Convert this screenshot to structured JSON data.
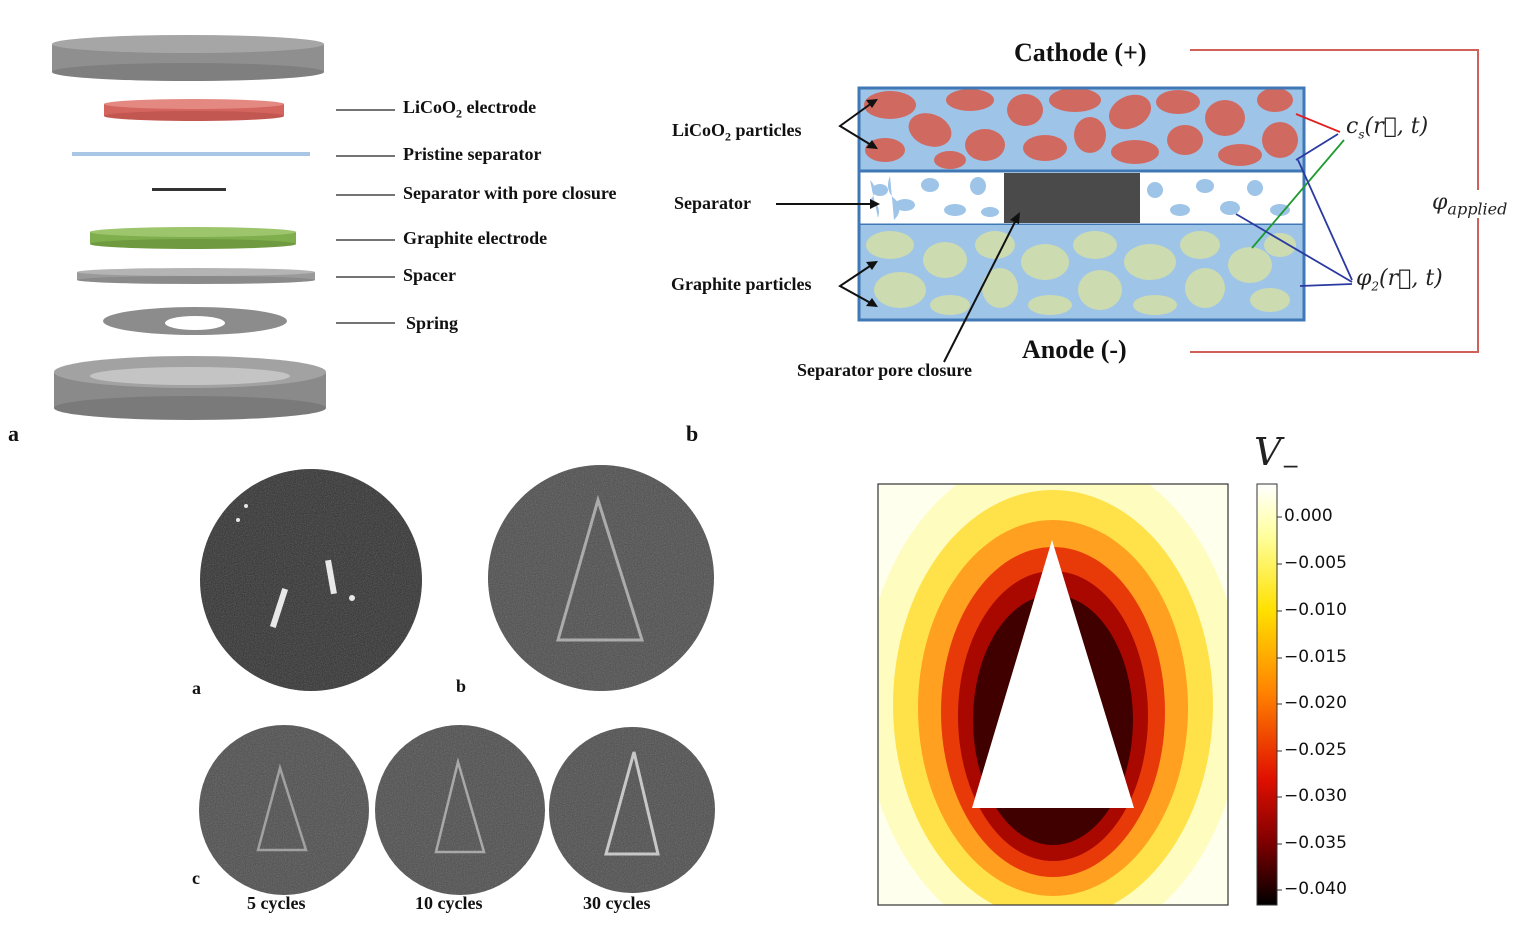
{
  "panel_a": {
    "letter": "a",
    "layers": [
      {
        "name": "LiCoO2 electrode",
        "text_main": "LiCoO",
        "text_sub": "2",
        "text_rest": " electrode",
        "color": "#d9706c"
      },
      {
        "name": "Pristine separator",
        "text": "Pristine separator",
        "color": "#a9c6e4"
      },
      {
        "name": "Separator with pore closure",
        "text": "Separator with pore closure",
        "color": "#333333"
      },
      {
        "name": "Graphite electrode",
        "text": "Graphite electrode",
        "color": "#8bb658"
      },
      {
        "name": "Spacer",
        "text": "Spacer",
        "color": "#9e9e9e"
      },
      {
        "name": "Spring",
        "text": "Spring",
        "color": "#8c8c8c"
      }
    ]
  },
  "panel_b": {
    "letter": "b",
    "cathode": "Cathode (+)",
    "anode": "Anode (-)",
    "licoo2_main": "LiCoO",
    "licoo2_sub": "2",
    "licoo2_rest": " particles",
    "separator": "Separator",
    "graphite": "Graphite particles",
    "pore_closure": "Separator pore closure",
    "cs_label": "c",
    "cs_sub": "s",
    "cs_args": "(r⃗, t)",
    "phi2_label": "φ",
    "phi2_sub": "2",
    "phi2_args": "(r⃗, t)",
    "phi_applied": "φ",
    "phi_applied_sub": "applied",
    "colors": {
      "cathode": "#d06a61",
      "electrolyte": "#9ec4e8",
      "graphite": "#cddbb0",
      "closure": "#4a4a4a",
      "frame": "#3f78b5",
      "circuit": "#d0605a"
    }
  },
  "panel_c": {
    "sub_a": "a",
    "sub_b": "b",
    "sub_c": "c",
    "captions": [
      "5 cycles",
      "10 cycles",
      "30 cycles"
    ]
  },
  "heatmap": {
    "title_main": "V",
    "title_sub": "−",
    "colorbar_ticks": [
      "0.000",
      "−0.005",
      "−0.010",
      "−0.015",
      "−0.020",
      "−0.025",
      "−0.030",
      "−0.035",
      "−0.040"
    ]
  }
}
